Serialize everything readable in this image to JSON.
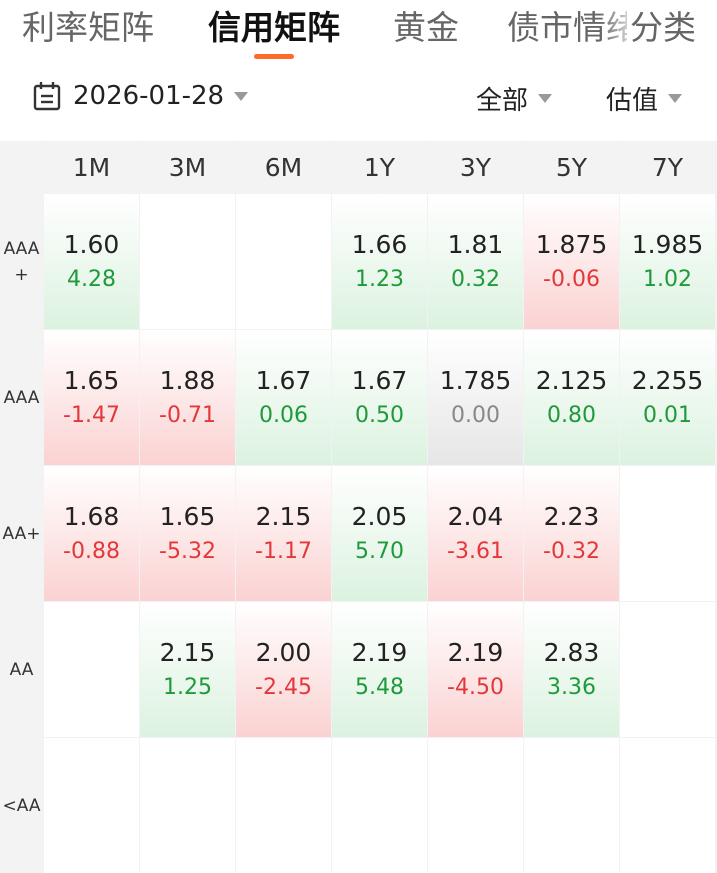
{
  "tabs": [
    {
      "label": "利率矩阵"
    },
    {
      "label": "信用矩阵"
    },
    {
      "label": "黄金"
    },
    {
      "label": "债市情绪"
    },
    {
      "label": "分类"
    }
  ],
  "active_tab": "信用矩阵",
  "filters": {
    "date": "2026-01-28",
    "scope": "全部",
    "metric": "估值"
  },
  "colors": {
    "accent": "#ff6a2a",
    "positive": "#1f9a3a",
    "negative": "#e2383a",
    "neutral": "#888888"
  },
  "matrix": {
    "columns": [
      "1M",
      "3M",
      "6M",
      "1Y",
      "3Y",
      "5Y",
      "7Y"
    ],
    "rows": [
      {
        "label": "AAA+",
        "cells": [
          {
            "yield": "1.60",
            "change": "4.28",
            "tone": "green"
          },
          null,
          null,
          {
            "yield": "1.66",
            "change": "1.23",
            "tone": "green"
          },
          {
            "yield": "1.81",
            "change": "0.32",
            "tone": "green"
          },
          {
            "yield": "1.875",
            "change": "-0.06",
            "tone": "red"
          },
          {
            "yield": "1.985",
            "change": "1.02",
            "tone": "green"
          }
        ]
      },
      {
        "label": "AAA",
        "cells": [
          {
            "yield": "1.65",
            "change": "-1.47",
            "tone": "red"
          },
          {
            "yield": "1.88",
            "change": "-0.71",
            "tone": "red"
          },
          {
            "yield": "1.67",
            "change": "0.06",
            "tone": "green"
          },
          {
            "yield": "1.67",
            "change": "0.50",
            "tone": "green"
          },
          {
            "yield": "1.785",
            "change": "0.00",
            "tone": "gray"
          },
          {
            "yield": "2.125",
            "change": "0.80",
            "tone": "green"
          },
          {
            "yield": "2.255",
            "change": "0.01",
            "tone": "green"
          }
        ]
      },
      {
        "label": "AA+",
        "cells": [
          {
            "yield": "1.68",
            "change": "-0.88",
            "tone": "red"
          },
          {
            "yield": "1.65",
            "change": "-5.32",
            "tone": "red"
          },
          {
            "yield": "2.15",
            "change": "-1.17",
            "tone": "red"
          },
          {
            "yield": "2.05",
            "change": "5.70",
            "tone": "green"
          },
          {
            "yield": "2.04",
            "change": "-3.61",
            "tone": "red"
          },
          {
            "yield": "2.23",
            "change": "-0.32",
            "tone": "red"
          },
          null
        ]
      },
      {
        "label": "AA",
        "cells": [
          null,
          {
            "yield": "2.15",
            "change": "1.25",
            "tone": "green"
          },
          {
            "yield": "2.00",
            "change": "-2.45",
            "tone": "red"
          },
          {
            "yield": "2.19",
            "change": "5.48",
            "tone": "green"
          },
          {
            "yield": "2.19",
            "change": "-4.50",
            "tone": "red"
          },
          {
            "yield": "2.83",
            "change": "3.36",
            "tone": "green"
          },
          null
        ]
      },
      {
        "label": "<AA",
        "cells": [
          null,
          null,
          null,
          null,
          null,
          null,
          null
        ]
      }
    ]
  }
}
